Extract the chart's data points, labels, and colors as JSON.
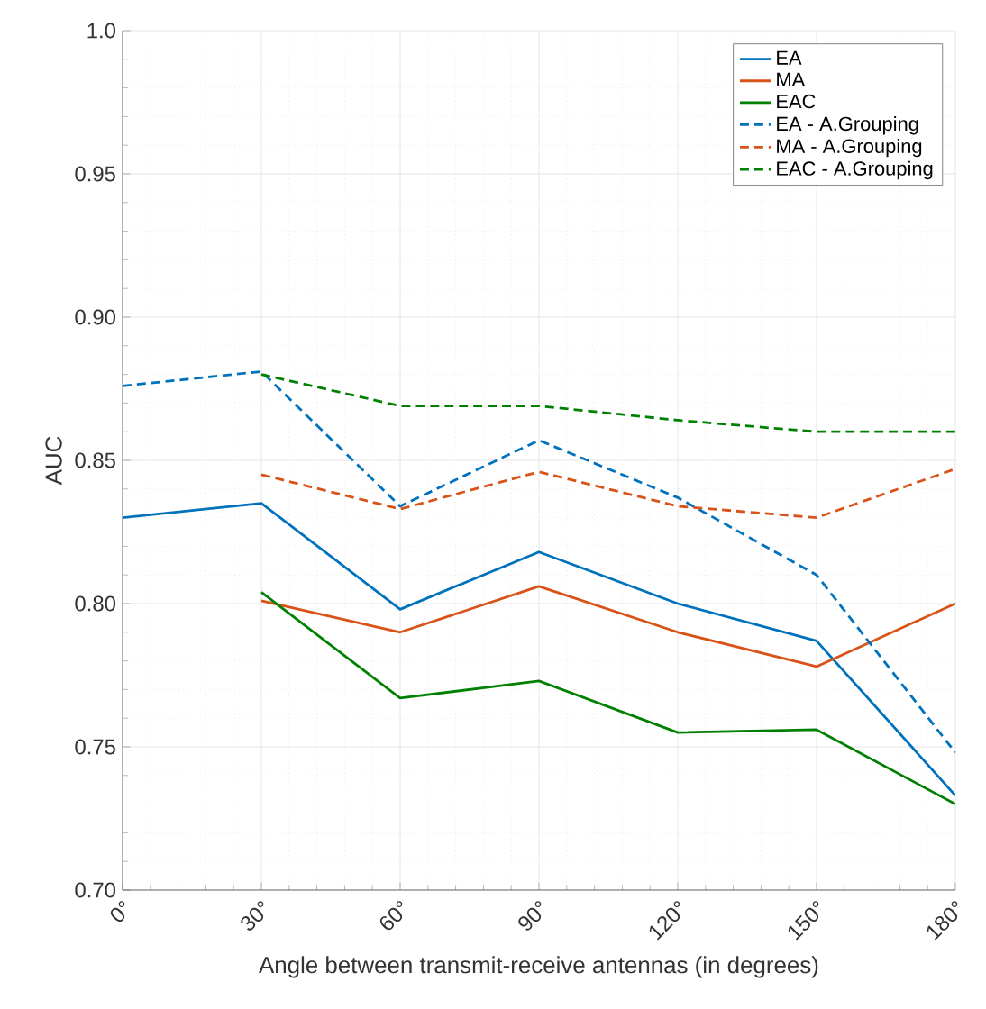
{
  "chart_data": {
    "type": "line",
    "xlabel": "Angle between transmit-receive antennas (in degrees)",
    "ylabel": "AUC",
    "x": [
      0,
      30,
      60,
      90,
      120,
      150,
      180
    ],
    "xlim": [
      0,
      180
    ],
    "xticks": [
      {
        "value": 0,
        "label": "0°"
      },
      {
        "value": 30,
        "label": "30°"
      },
      {
        "value": 60,
        "label": "60°"
      },
      {
        "value": 90,
        "label": "90°"
      },
      {
        "value": 120,
        "label": "120°"
      },
      {
        "value": 150,
        "label": "150°"
      },
      {
        "value": 180,
        "label": "180°"
      }
    ],
    "ylim": [
      0.7,
      1.0
    ],
    "yticks": [
      {
        "value": 0.7,
        "label": "0.70"
      },
      {
        "value": 0.75,
        "label": "0.75"
      },
      {
        "value": 0.8,
        "label": "0.80"
      },
      {
        "value": 0.85,
        "label": "0.85"
      },
      {
        "value": 0.9,
        "label": "0.90"
      },
      {
        "value": 0.95,
        "label": "0.95"
      },
      {
        "value": 1.0,
        "label": "1.0"
      }
    ],
    "grid": true,
    "legend": "top right",
    "series": [
      {
        "name": "EA",
        "color": "#0072bd",
        "line_style": "solid",
        "values": [
          0.83,
          0.835,
          0.798,
          0.818,
          0.8,
          0.787,
          0.733
        ]
      },
      {
        "name": "MA",
        "color": "#d95319",
        "line_style": "solid",
        "values": [
          null,
          0.801,
          0.79,
          0.806,
          0.79,
          0.778,
          0.8
        ]
      },
      {
        "name": "EAC",
        "color": "#008000",
        "line_style": "solid",
        "values": [
          null,
          0.804,
          0.767,
          0.773,
          0.755,
          0.756,
          0.73
        ]
      },
      {
        "name": "EA - A.Grouping",
        "color": "#0072bd",
        "line_style": "dashed",
        "values": [
          0.876,
          0.881,
          0.834,
          0.857,
          0.837,
          0.81,
          0.748
        ]
      },
      {
        "name": "MA - A.Grouping",
        "color": "#d95319",
        "line_style": "dashed",
        "values": [
          null,
          0.845,
          0.833,
          0.846,
          0.834,
          0.83,
          0.847
        ]
      },
      {
        "name": "EAC - A.Grouping",
        "color": "#008000",
        "line_style": "dashed",
        "values": [
          null,
          0.88,
          0.869,
          0.869,
          0.864,
          0.86,
          0.86
        ]
      }
    ]
  }
}
